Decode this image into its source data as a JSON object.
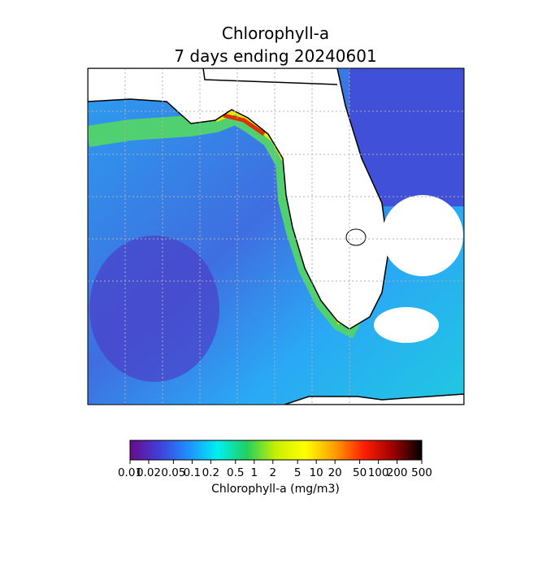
{
  "title": [
    "Chlorophyll-a",
    "7 days ending 20240601"
  ],
  "colorbar": {
    "label": "Chlorophyll-a (mg/m3)",
    "scale": "log",
    "lim": [
      0.01,
      500
    ],
    "ticks": [
      0.01,
      0.02,
      0.05,
      0.1,
      0.2,
      0.5,
      1,
      2,
      5,
      10,
      20,
      50,
      100,
      200,
      500
    ],
    "colormap": [
      "#6a0a8a",
      "#3f3fd8",
      "#1f8fff",
      "#00f0f0",
      "#20d060",
      "#c8f000",
      "#ffff00",
      "#ffa000",
      "#ff2000",
      "#a00000",
      "#000000"
    ]
  }
}
